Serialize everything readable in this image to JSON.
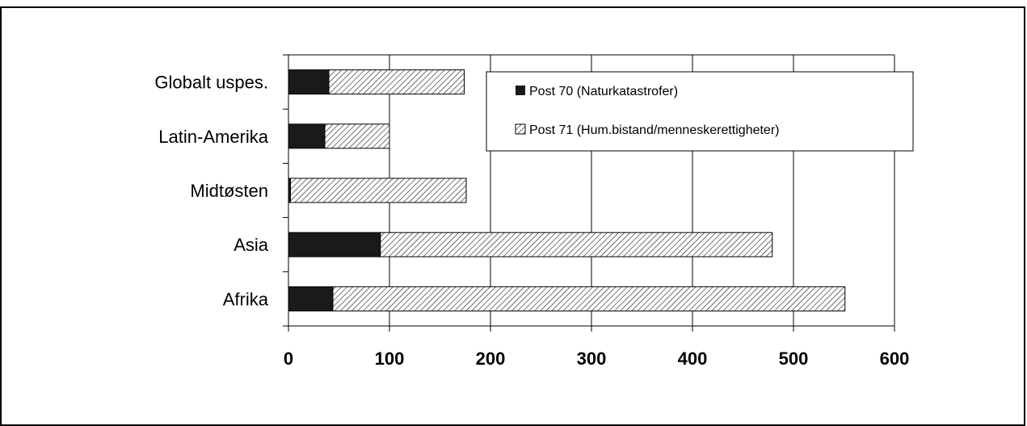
{
  "chart_data": {
    "type": "bar",
    "orientation": "horizontal",
    "stacked": true,
    "categories": [
      "Afrika",
      "Asia",
      "Midtøsten",
      "Latin-Amerika",
      "Globalt uspes."
    ],
    "series": [
      {
        "name": "Post 70 (Naturkatastrofer)",
        "values": [
          44,
          91,
          2,
          36,
          40
        ],
        "color": "#1a1a1a",
        "pattern": "solid"
      },
      {
        "name": "Post 71 (Hum.bistand/menneskerettigheter)",
        "values": [
          507,
          388,
          174,
          64,
          134
        ],
        "color": "#ffffff",
        "pattern": "diagonal-hatch"
      }
    ],
    "xticks": [
      "0",
      "100",
      "200",
      "300",
      "400",
      "500",
      "600"
    ],
    "xlim": [
      0,
      600
    ],
    "grid": "vertical",
    "legend": "top-right",
    "title": "",
    "xlabel": "",
    "ylabel": ""
  }
}
